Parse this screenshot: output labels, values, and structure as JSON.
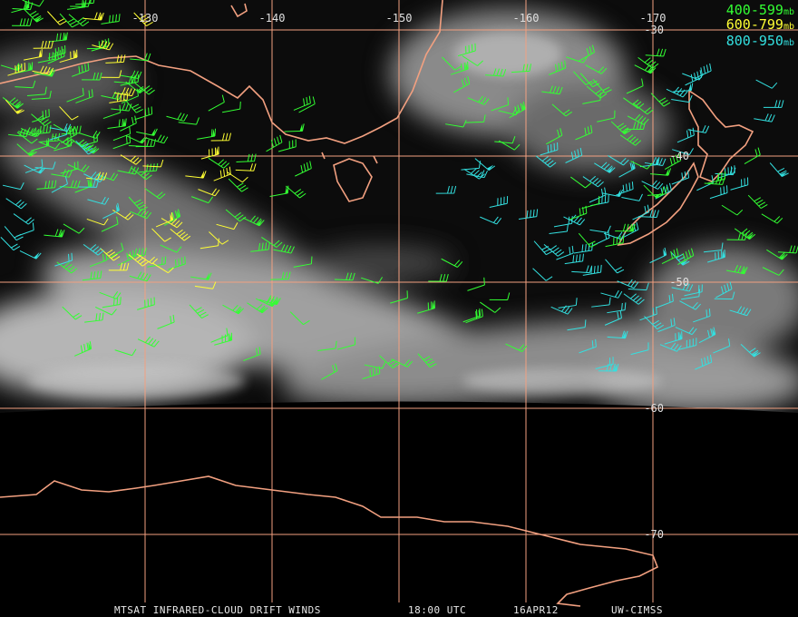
{
  "grid": {
    "longitudes": [
      "-130",
      "-140",
      "-150",
      "-160",
      "-170"
    ],
    "latitudes": [
      "-30",
      "-40",
      "-50",
      "-60",
      "-70"
    ]
  },
  "legend": [
    {
      "range": "400-599",
      "unit": "mb"
    },
    {
      "range": "600-799",
      "unit": "mb"
    },
    {
      "range": "800-950",
      "unit": "mb"
    }
  ],
  "footer": {
    "product": "MTSAT INFRARED-CLOUD DRIFT WINDS",
    "time": "18:00 UTC",
    "date": "16APR12",
    "source": "UW-CIMSS"
  }
}
